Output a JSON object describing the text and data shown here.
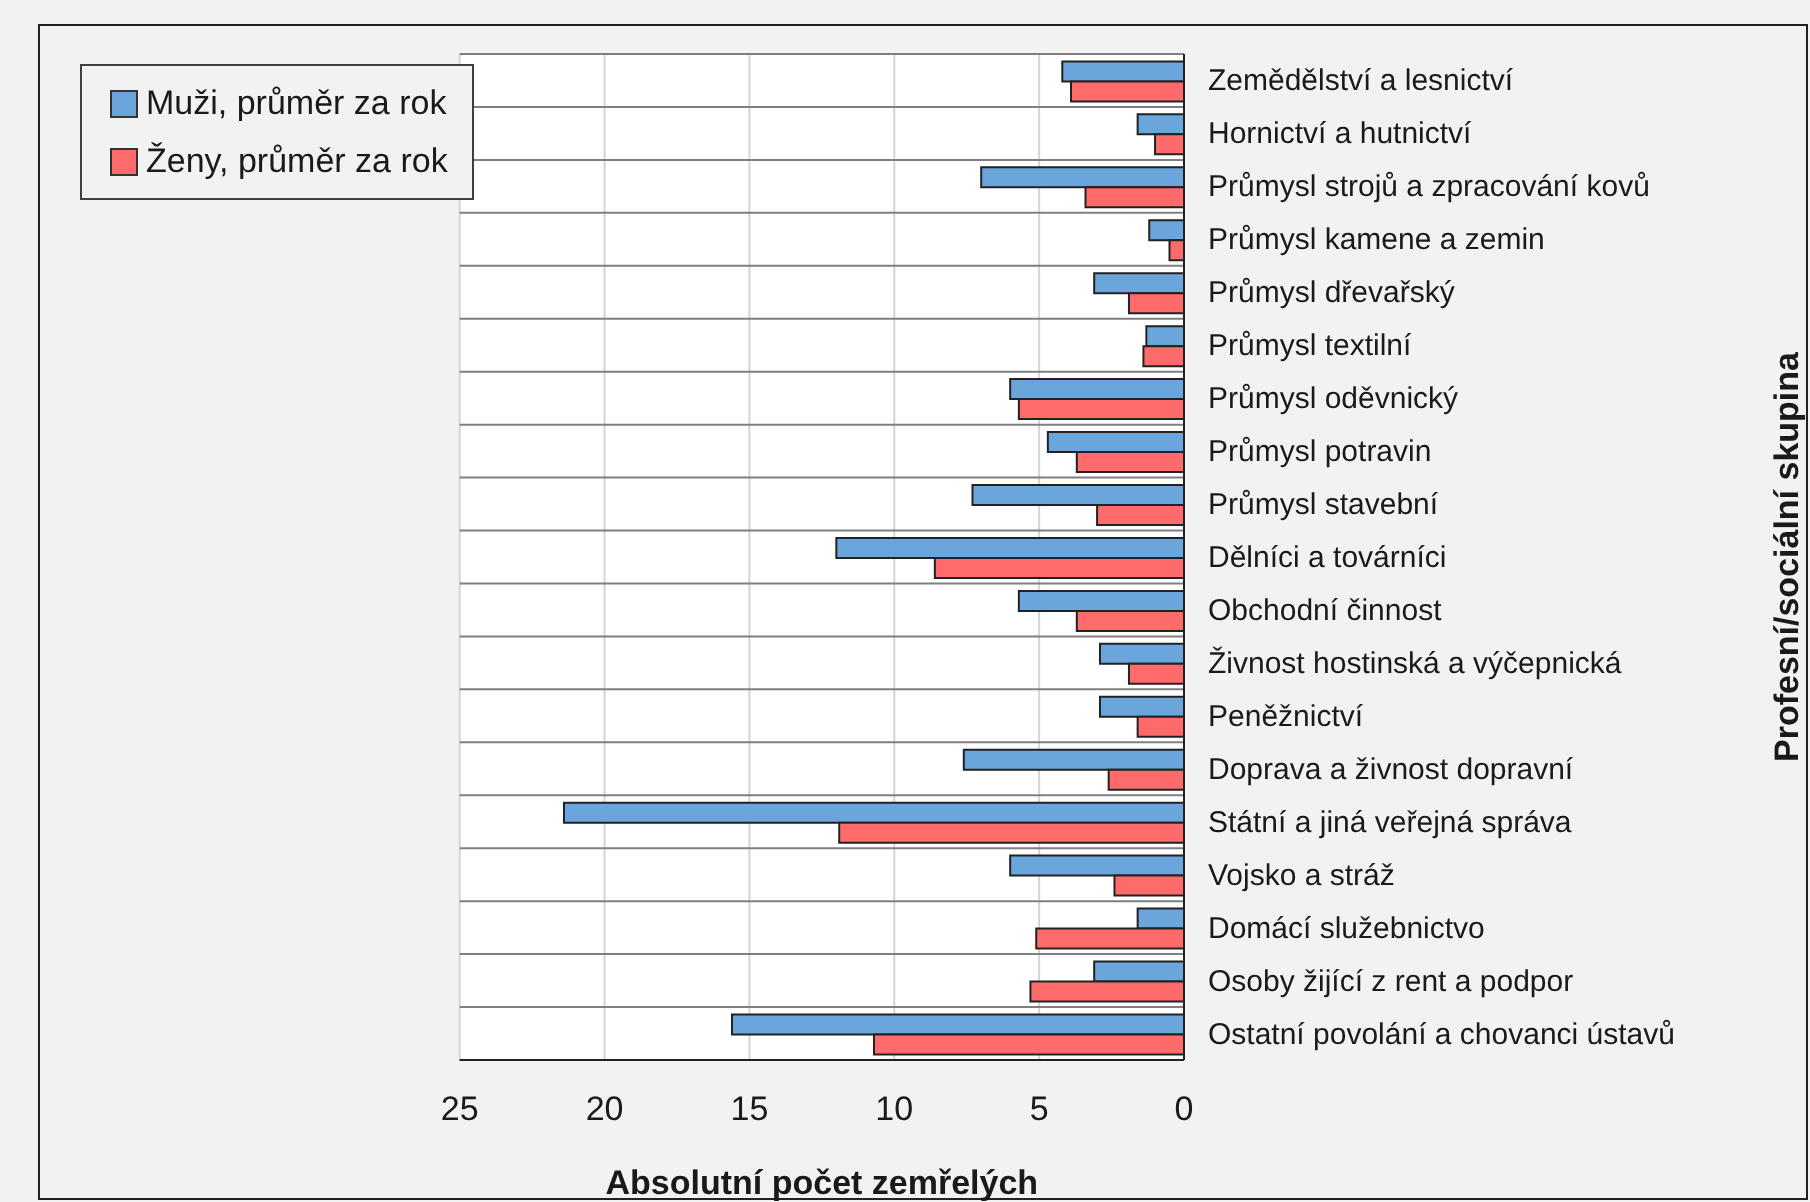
{
  "chart_data": {
    "type": "bar",
    "orientation": "horizontal",
    "xlabel": "Absolutní počet zemřelých",
    "ylabel": "Profesní/sociální skupina",
    "categories": [
      "Zemědělství a lesnictví",
      "Hornictví a hutnictví",
      "Průmysl strojů a zpracování kovů",
      "Průmysl kamene a zemin",
      "Průmysl dřevařský",
      "Průmysl textilní",
      "Průmysl oděvnický",
      "Průmysl potravin",
      "Průmysl stavební",
      "Dělníci a továrníci",
      "Obchodní činnost",
      "Živnost hostinská a výčepnická",
      "Peněžnictví",
      "Doprava a živnost dopravní",
      "Státní a jiná veřejná správa",
      "Vojsko a stráž",
      "Domácí služebnictvo",
      "Osoby žijící z rent a podpor",
      "Ostatní povolání a chovanci ústavů"
    ],
    "series": [
      {
        "name": "Muži, průměr za rok",
        "color": "#6aa5dc",
        "values": [
          4.2,
          1.6,
          7.0,
          1.2,
          3.1,
          1.3,
          6.0,
          4.7,
          7.3,
          12.0,
          5.7,
          2.9,
          2.9,
          7.6,
          21.4,
          6.0,
          1.6,
          3.1,
          15.6
        ]
      },
      {
        "name": "Ženy, průměr za rok",
        "color": "#ff6b6b",
        "values": [
          3.9,
          1.0,
          3.4,
          0.5,
          1.9,
          1.4,
          5.7,
          3.7,
          3.0,
          8.6,
          3.7,
          1.9,
          1.6,
          2.6,
          11.9,
          2.4,
          5.1,
          5.3,
          10.7
        ]
      }
    ],
    "xlim": [
      25,
      0
    ],
    "xticks": [
      25,
      20,
      15,
      10,
      5,
      0
    ],
    "grid": true,
    "legend": "top left"
  }
}
